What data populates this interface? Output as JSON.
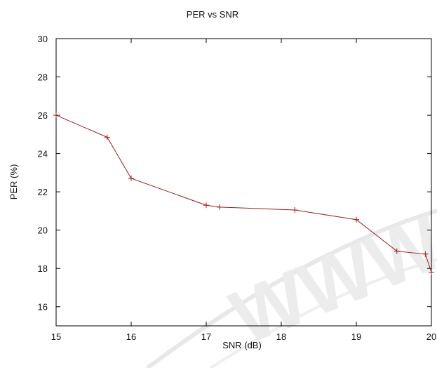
{
  "chart_data": {
    "type": "line",
    "title": "PER vs SNR",
    "xlabel": "SNR (dB)",
    "ylabel": "PER (%)",
    "xlim": [
      15,
      20
    ],
    "ylim": [
      15,
      30
    ],
    "xticks": [
      15,
      16,
      17,
      18,
      19,
      20
    ],
    "yticks": [
      16,
      18,
      20,
      22,
      24,
      26,
      28,
      30
    ],
    "grid": false,
    "series": [
      {
        "color": "#9b1c1c",
        "marker": "plus",
        "x": [
          15.0,
          15.68,
          16.0,
          17.0,
          17.18,
          18.18,
          19.0,
          19.54,
          19.92,
          20.0
        ],
        "y": [
          26.0,
          24.85,
          22.7,
          21.3,
          21.2,
          21.05,
          20.55,
          18.9,
          18.75,
          17.8
        ]
      }
    ],
    "watermark": "WWW"
  }
}
